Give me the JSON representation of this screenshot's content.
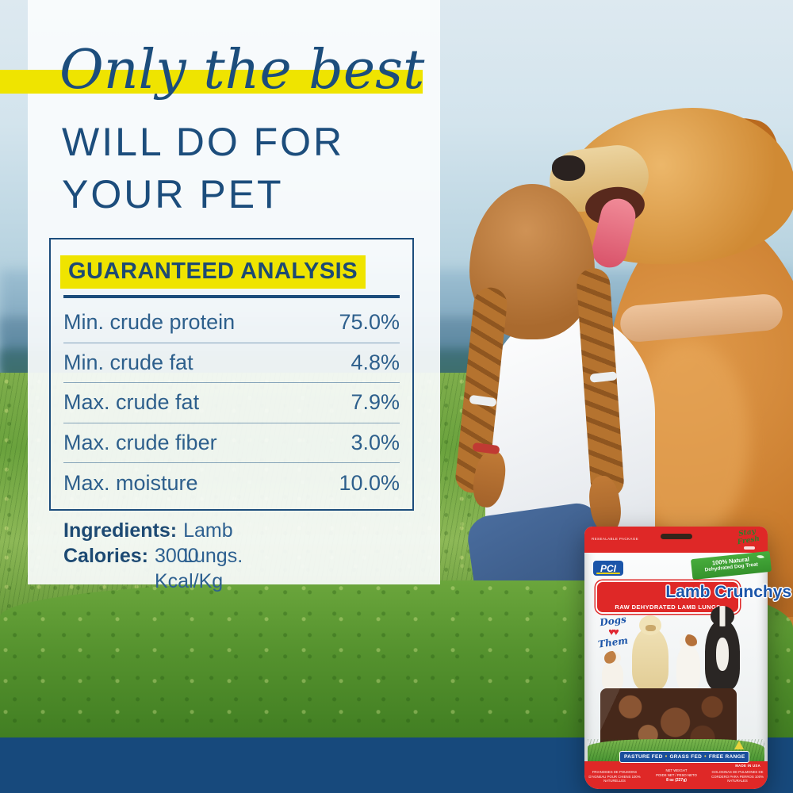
{
  "colors": {
    "navy": "#1c4d7c",
    "highlight_yellow": "#efe400",
    "bar_blue": "#17497c",
    "bag_red": "#df2827",
    "bag_blue": "#1b55a9",
    "green": "#3da03a"
  },
  "headline": {
    "script": "Only the best",
    "caps_line1": "WILL DO FOR",
    "caps_line2": "YOUR PET"
  },
  "analysis": {
    "title": "GUARANTEED ANALYSIS",
    "rows": [
      {
        "label": "Min. crude protein",
        "value": "75.0%"
      },
      {
        "label": "Min. crude fat",
        "value": "4.8%"
      },
      {
        "label": "Max. crude fat",
        "value": "7.9%"
      },
      {
        "label": "Max. crude fiber",
        "value": "3.0%"
      },
      {
        "label": "Max. moisture",
        "value": "10.0%"
      }
    ],
    "ingredients_label": "Ingredients:",
    "ingredients_value": "Lamb Lungs.",
    "calories_label": "Calories:",
    "calories_value": "3000 Kcal/Kg"
  },
  "package": {
    "resealable": "RESEALABLE PACKAGE",
    "stay_fresh_line1": "Stay",
    "stay_fresh_line2": "Fresh",
    "brand": "PCI",
    "ribbon_line1": "100% Natural",
    "ribbon_line2": "Dehydrated Dog Treat",
    "name": "Lamb Crunchys",
    "registered": "®",
    "subtitle": "RAW DEHYDRATED LAMB LUNGS",
    "love_line1": "Dogs",
    "love_hearts": "♥♥",
    "love_line2": "Them",
    "banner_item1": "PASTURE FED",
    "banner_item2": "GRASS FED",
    "banner_item3": "FREE RANGE",
    "banner_sep": "•",
    "made_in": "MADE IN USA",
    "weight_line1": "NET WEIGHT",
    "weight_line2": "POIDS NET / PESO NETO",
    "weight_line3": "8 oz (227g)",
    "fine_print_left": "FRIANDISES DE POUMONS D'AGNEAU POUR CHIENS 100% NATURELLES",
    "fine_print_right": "GOLOSINAS DE PULMONES DE CORDERO PARA PERROS 100% NATURALES"
  }
}
